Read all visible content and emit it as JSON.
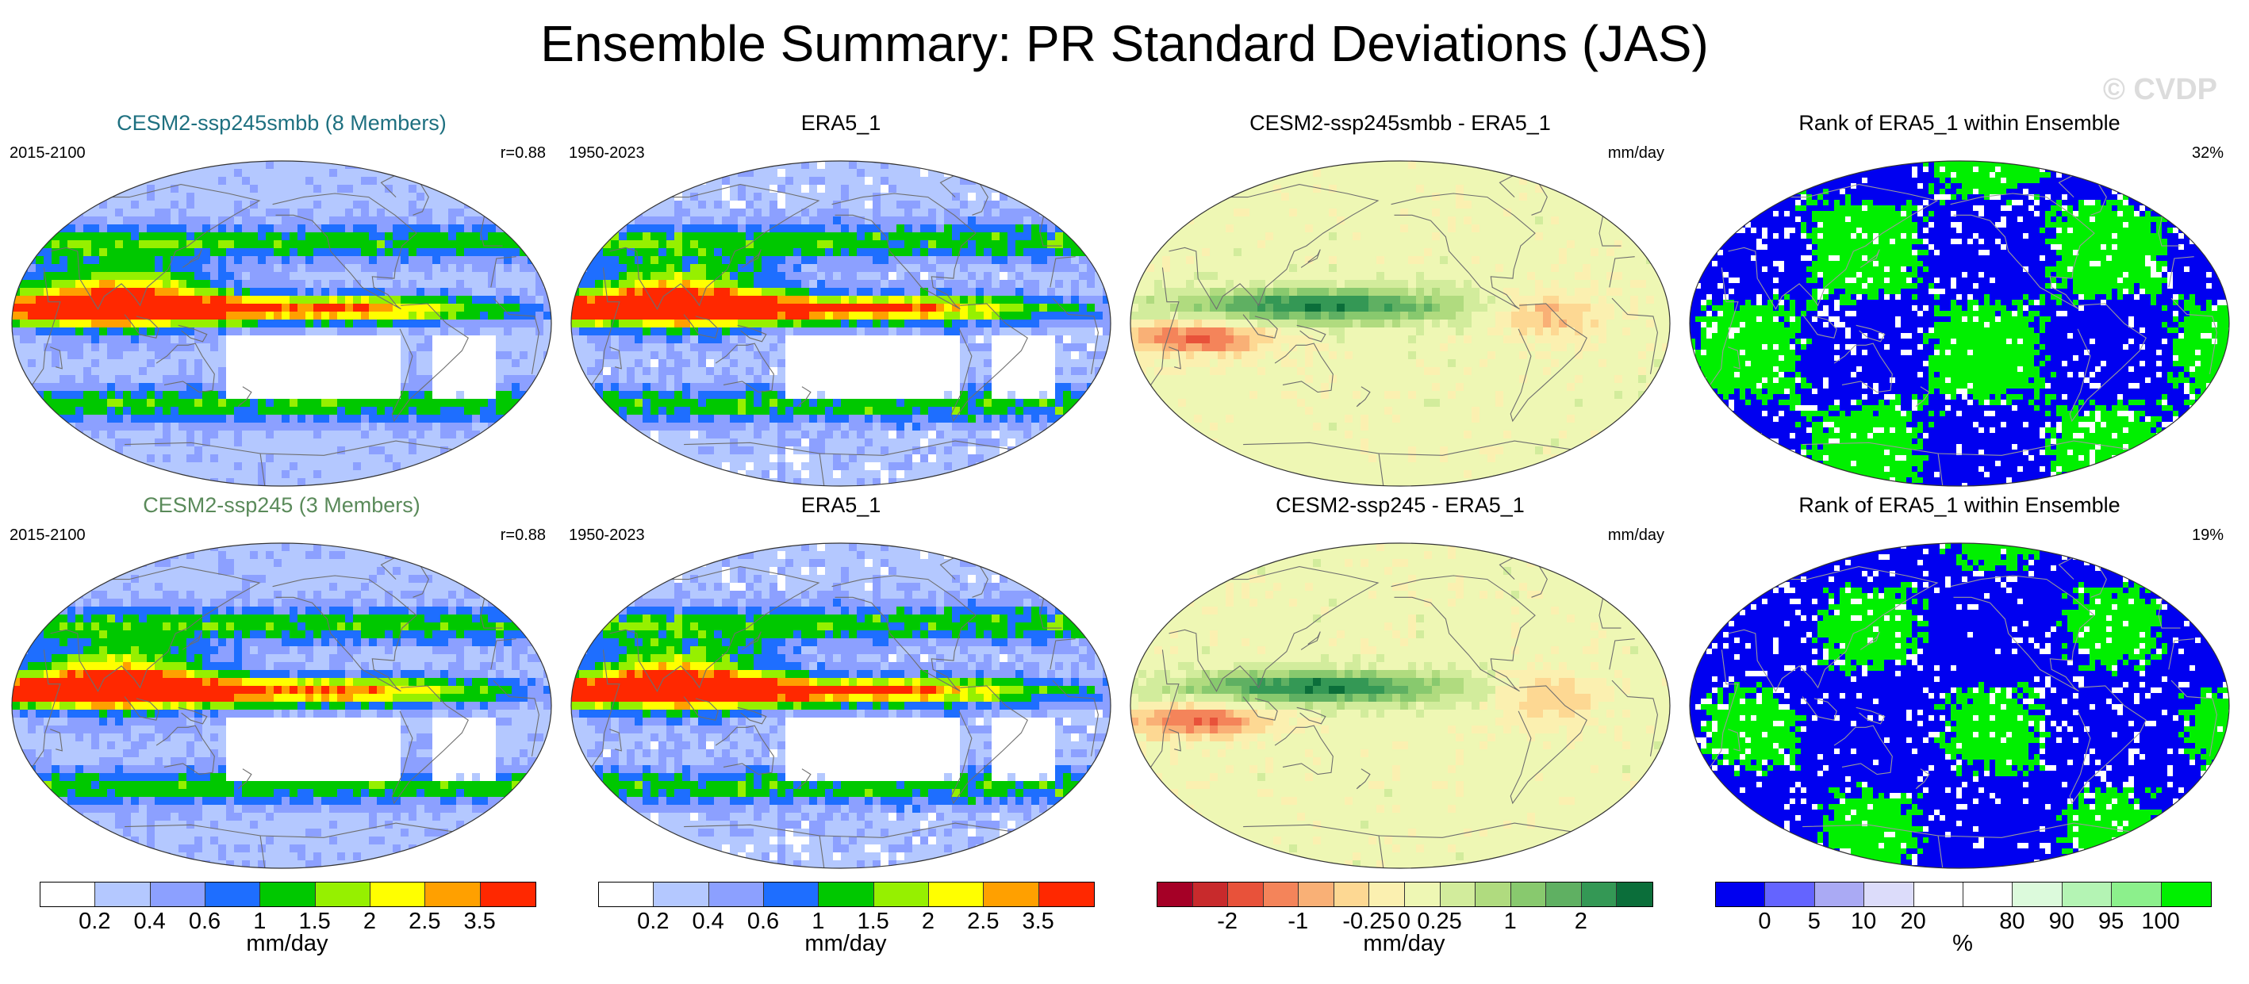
{
  "title": "Ensemble Summary: PR Standard Deviations (JAS)",
  "watermark": "© CVDP",
  "rows": [
    {
      "panels": [
        {
          "title": "CESM2-ssp245smbb (8 Members)",
          "title_color": "#1e7080",
          "left": "2015-2100",
          "right": "r=0.88",
          "type": "std"
        },
        {
          "title": "ERA5_1",
          "title_color": "#000000",
          "left": "1950-2023",
          "right": "",
          "type": "std"
        },
        {
          "title": "CESM2-ssp245smbb - ERA5_1",
          "title_color": "#000000",
          "left": "",
          "right": "mm/day",
          "type": "diff"
        },
        {
          "title": "Rank of ERA5_1 within Ensemble",
          "title_color": "#000000",
          "left": "",
          "right": "32%",
          "type": "rank"
        }
      ]
    },
    {
      "panels": [
        {
          "title": "CESM2-ssp245 (3 Members)",
          "title_color": "#5a8a5a",
          "left": "2015-2100",
          "right": "r=0.88",
          "type": "std"
        },
        {
          "title": "ERA5_1",
          "title_color": "#000000",
          "left": "1950-2023",
          "right": "",
          "type": "std"
        },
        {
          "title": "CESM2-ssp245 - ERA5_1",
          "title_color": "#000000",
          "left": "",
          "right": "mm/day",
          "type": "diff"
        },
        {
          "title": "Rank of ERA5_1 within Ensemble",
          "title_color": "#000000",
          "left": "",
          "right": "19%",
          "type": "rank"
        }
      ]
    }
  ],
  "colorbars": {
    "std": {
      "colors": [
        "#ffffff",
        "#b4c8ff",
        "#8ca0ff",
        "#1e6eff",
        "#00c800",
        "#96f000",
        "#ffff00",
        "#ffa000",
        "#ff2800"
      ],
      "labels": [
        "0.2",
        "0.4",
        "0.6",
        "1",
        "1.5",
        "2",
        "2.5",
        "3.5"
      ],
      "units": "mm/day"
    },
    "diff": {
      "colors": [
        "#a50026",
        "#c82a2c",
        "#e8523a",
        "#f4845a",
        "#f9b076",
        "#fdd893",
        "#fbf0b0",
        "#eef7b4",
        "#d2ec9c",
        "#b0db7f",
        "#88c96e",
        "#5fb062",
        "#349855",
        "#0b6e3a"
      ],
      "labels": [
        "-2",
        "-1",
        "-0.25",
        "0",
        "0.25",
        "1",
        "2"
      ],
      "units": "mm/day"
    },
    "rank": {
      "colors": [
        "#0000f0",
        "#6464ff",
        "#aaaaf4",
        "#dcdcfa",
        "#ffffff",
        "#ffffff",
        "#dcfadc",
        "#b4f4b4",
        "#8cf08c",
        "#00f000"
      ],
      "labels": [
        "0",
        "5",
        "10",
        "20",
        "80",
        "90",
        "95",
        "100"
      ],
      "units": "%"
    }
  }
}
